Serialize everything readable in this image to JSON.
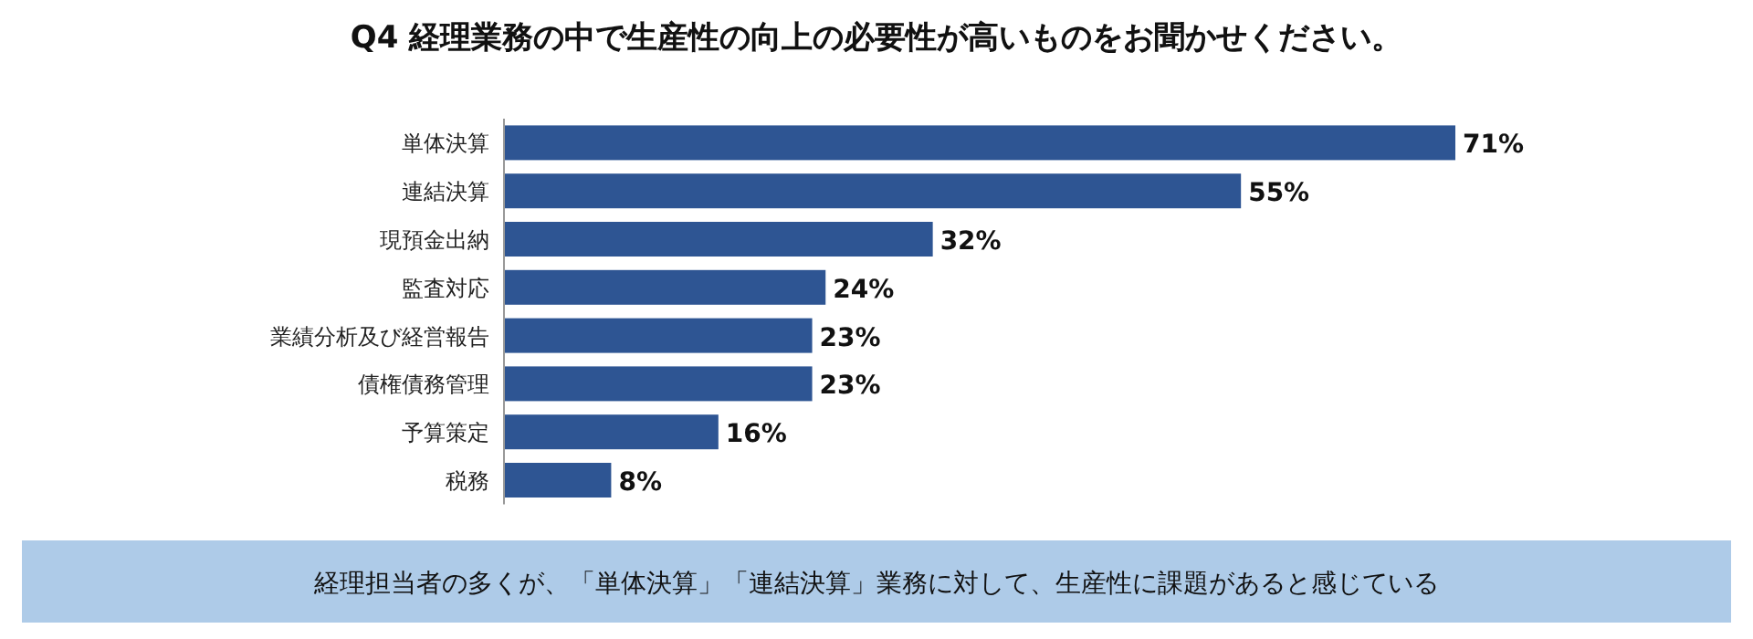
{
  "chart_data": {
    "type": "bar",
    "orientation": "horizontal",
    "title": "Q4 経理業務の中で生産性の向上の必要性が高いものをお聞かせください。",
    "categories": [
      "単体決算",
      "連結決算",
      "現預金出納",
      "監査対応",
      "業績分析及び経営報告",
      "債権債務管理",
      "予算策定",
      "税務"
    ],
    "values": [
      71,
      55,
      32,
      24,
      23,
      23,
      16,
      8
    ],
    "value_labels": [
      "71%",
      "55%",
      "32%",
      "24%",
      "23%",
      "23%",
      "16%",
      "8%"
    ],
    "color": "#2e5593",
    "annotations": [
      "経理担当者の多くが、「単体決算」「連結決算」業務に対して、生産性に課題があると感じている"
    ]
  }
}
